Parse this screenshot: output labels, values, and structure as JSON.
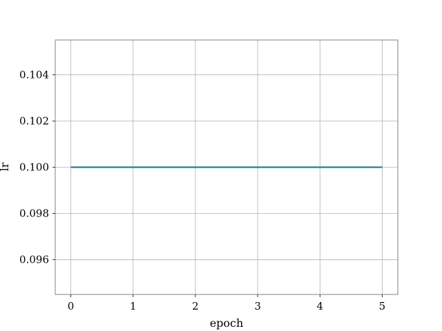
{
  "chart_data": {
    "type": "line",
    "title": "",
    "xlabel": "epoch",
    "ylabel": "lr",
    "x": [
      0,
      1,
      2,
      3,
      4,
      5
    ],
    "series": [
      {
        "name": "lr",
        "values": [
          0.1,
          0.1,
          0.1,
          0.1,
          0.1,
          0.1
        ],
        "color": "#1f77b4"
      }
    ],
    "xlim": [
      -0.25,
      5.25
    ],
    "ylim": [
      0.0945,
      0.1055
    ],
    "xticks": [
      0,
      1,
      2,
      3,
      4,
      5
    ],
    "xtick_labels": [
      "0",
      "1",
      "2",
      "3",
      "4",
      "5"
    ],
    "yticks": [
      0.096,
      0.098,
      0.1,
      0.102,
      0.104
    ],
    "ytick_labels": [
      "0.096",
      "0.098",
      "0.100",
      "0.102",
      "0.104"
    ],
    "grid": true,
    "overlay_color": "#2ca02c"
  }
}
